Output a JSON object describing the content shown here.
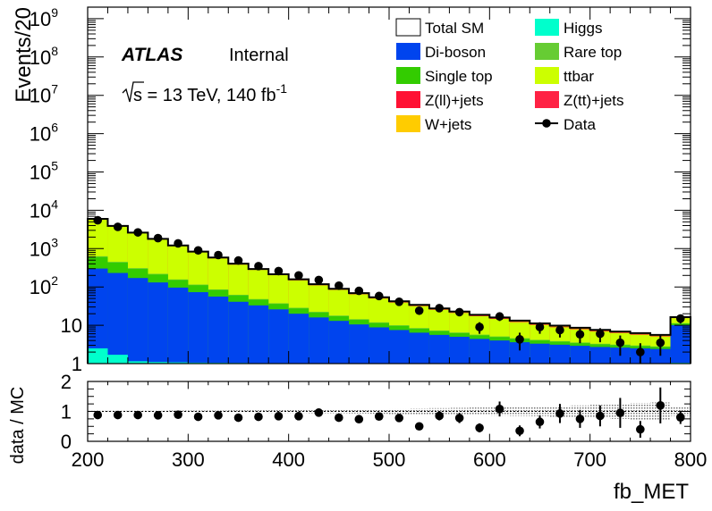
{
  "chart_data": [
    {
      "type": "stacked-histogram",
      "atlas_label": "ATLAS",
      "status_label": "Internal",
      "energy_text": "s = 13 TeV, 140 fb",
      "energy_sup": "-1",
      "ylabel": "Events/20",
      "yscale": "log",
      "ylim": [
        1,
        2000000000
      ],
      "xlim": [
        200,
        800
      ],
      "y_tick_labels": [
        {
          "value": 1000000000,
          "base": "10",
          "exp": "9"
        },
        {
          "value": 100000000,
          "base": "10",
          "exp": "8"
        },
        {
          "value": 10000000,
          "base": "10",
          "exp": "7"
        },
        {
          "value": 1000000,
          "base": "10",
          "exp": "6"
        },
        {
          "value": 100000,
          "base": "10",
          "exp": "5"
        },
        {
          "value": 10000,
          "base": "10",
          "exp": "4"
        },
        {
          "value": 1000,
          "base": "10",
          "exp": "3"
        },
        {
          "value": 100,
          "base": "10",
          "exp": "2"
        },
        {
          "value": 10,
          "base": "10",
          "exp": ""
        },
        {
          "value": 1,
          "base": "1",
          "exp": ""
        }
      ],
      "bin_edges": [
        200,
        220,
        240,
        260,
        280,
        300,
        320,
        340,
        360,
        380,
        400,
        420,
        440,
        460,
        480,
        500,
        520,
        540,
        560,
        580,
        600,
        620,
        640,
        660,
        680,
        700,
        720,
        740,
        760,
        780,
        800
      ],
      "stack": [
        {
          "name": "Higgs",
          "color": "#00ffcc",
          "values": [
            2.5,
            1.7,
            1.15,
            1.1,
            1.08,
            1.06,
            1.05,
            1.04,
            1.03,
            1.03,
            1.02,
            1.02,
            1.02,
            1.02,
            1.01,
            1.01,
            1.01,
            1.01,
            1.01,
            1.01,
            1.01,
            1.01,
            1.01,
            1.01,
            1.01,
            1.01,
            1.01,
            1.01,
            1.01,
            1.05
          ]
        },
        {
          "name": "Di-boson",
          "color": "#0044ee",
          "values": [
            300,
            230,
            170,
            130,
            95,
            72,
            55,
            40,
            32,
            25,
            19,
            15,
            12,
            9.5,
            7.8,
            6.5,
            5.4,
            4.6,
            4,
            3.4,
            3,
            2.6,
            2.3,
            2.1,
            1.9,
            1.7,
            1.6,
            1.5,
            1.4,
            9
          ]
        },
        {
          "name": "Single top",
          "color": "#33cc00",
          "values": [
            300,
            200,
            125,
            80,
            55,
            38,
            27,
            19,
            13.5,
            10,
            7.5,
            5.5,
            4.2,
            3.3,
            2.6,
            2.1,
            1.7,
            1.4,
            1.2,
            1.05,
            0.9,
            0.8,
            0.7,
            0.6,
            0.5,
            0.45,
            0.4,
            0.35,
            0.3,
            1
          ]
        },
        {
          "name": "Rare top",
          "color": "#66cc33",
          "values": [
            30,
            20,
            13,
            9,
            6,
            4.3,
            3.2,
            2.4,
            1.8,
            1.4,
            1.1,
            0.9,
            0.7,
            0.6,
            0.5,
            0.4,
            0.35,
            0.3,
            0.26,
            0.23,
            0.2,
            0.18,
            0.16,
            0.15,
            0.14,
            0.13,
            0.12,
            0.11,
            0.1,
            0.3
          ]
        },
        {
          "name": "ttbar",
          "color": "#ccff00",
          "values": [
            5100,
            3300,
            2200,
            1500,
            1000,
            680,
            470,
            320,
            230,
            165,
            120,
            88,
            66,
            50,
            38,
            29,
            23,
            18,
            14.5,
            11.5,
            9.5,
            7.5,
            6,
            5,
            4.3,
            3.6,
            3.1,
            2.7,
            2.3,
            4
          ]
        },
        {
          "name": "Z(tt)+jets",
          "color": "#ff2244",
          "values": [
            30,
            22,
            15,
            11,
            8,
            6,
            4.5,
            3.4,
            2.6,
            2,
            1.6,
            1.3,
            1.05,
            0.85,
            0.7,
            0.6,
            0.5,
            0.42,
            0.36,
            0.3,
            0.26,
            0.22,
            0.19,
            0.17,
            0.15,
            0.13,
            0.12,
            0.11,
            0.1,
            0.2
          ]
        },
        {
          "name": "Z(ll)+jets",
          "color": "#ff1133",
          "values": [
            12,
            9,
            6.5,
            5,
            3.7,
            2.8,
            2.1,
            1.6,
            1.25,
            1,
            0.8,
            0.65,
            0.52,
            0.42,
            0.35,
            0.29,
            0.24,
            0.2,
            0.17,
            0.15,
            0.13,
            0.11,
            0.1,
            0.09,
            0.08,
            0.07,
            0.06,
            0.06,
            0.05,
            0.1
          ]
        },
        {
          "name": "W+jets",
          "color": "#ffcc00",
          "values": [
            200,
            140,
            95,
            65,
            45,
            32,
            23,
            17,
            12.5,
            9.5,
            7.2,
            5.6,
            4.4,
            3.5,
            2.8,
            2.3,
            1.9,
            1.6,
            1.35,
            1.15,
            1,
            0.85,
            0.75,
            0.65,
            0.55,
            0.5,
            0.45,
            0.4,
            0.35,
            0.6
          ]
        }
      ],
      "total_sm_label": "Total SM",
      "data_label": "Data",
      "data": {
        "x": [
          210,
          230,
          250,
          270,
          290,
          310,
          330,
          350,
          370,
          390,
          410,
          430,
          450,
          470,
          490,
          510,
          530,
          550,
          570,
          590,
          610,
          630,
          650,
          670,
          690,
          710,
          730,
          750,
          770,
          790
        ],
        "y": [
          5500,
          3700,
          2650,
          1880,
          1370,
          900,
          680,
          490,
          350,
          260,
          200,
          152,
          108,
          79,
          58,
          41,
          24,
          28,
          22,
          9,
          17,
          4.3,
          9,
          7.5,
          5.8,
          6,
          3.5,
          2,
          3.5,
          15
        ],
        "err": [
          75,
          61,
          51,
          43,
          37,
          30,
          26,
          22,
          19,
          16,
          14,
          12.3,
          10.4,
          8.9,
          7.6,
          6.4,
          4.9,
          5.3,
          4.7,
          3,
          4.1,
          2.1,
          3,
          2.7,
          2.4,
          2.4,
          1.9,
          1.4,
          1.9,
          3.9
        ]
      },
      "legend": [
        {
          "label": "Total SM",
          "kind": "box-outline",
          "color": "#ffffff"
        },
        {
          "label": "Higgs",
          "kind": "box",
          "color": "#00ffcc"
        },
        {
          "label": "Di-boson",
          "kind": "box",
          "color": "#0044ee"
        },
        {
          "label": "Rare top",
          "kind": "box",
          "color": "#66cc33"
        },
        {
          "label": "Single top",
          "kind": "box",
          "color": "#33cc00"
        },
        {
          "label": "ttbar",
          "kind": "box",
          "color": "#ccff00"
        },
        {
          "label": "Z(ll)+jets",
          "kind": "box",
          "color": "#ff1133"
        },
        {
          "label": "Z(tt)+jets",
          "kind": "box",
          "color": "#ff2244"
        },
        {
          "label": "W+jets",
          "kind": "box",
          "color": "#ffcc00"
        },
        {
          "label": "Data",
          "kind": "marker",
          "color": "#000000"
        }
      ],
      "legend_placement": "top-right"
    },
    {
      "type": "scatter",
      "ylabel": "data / MC",
      "xlabel": "fb_MET",
      "ylim": [
        0,
        2
      ],
      "xlim": [
        200,
        800
      ],
      "y_ticks": [
        0,
        1,
        2
      ],
      "x_ticks": [
        200,
        300,
        400,
        500,
        600,
        700,
        800
      ],
      "reference_line": 1,
      "x": [
        210,
        230,
        250,
        270,
        290,
        310,
        330,
        350,
        370,
        390,
        410,
        430,
        450,
        470,
        490,
        510,
        530,
        550,
        570,
        590,
        610,
        630,
        650,
        670,
        690,
        710,
        730,
        750,
        770,
        790
      ],
      "ratio": [
        0.88,
        0.88,
        0.88,
        0.87,
        0.89,
        0.82,
        0.87,
        0.79,
        0.82,
        0.84,
        0.84,
        0.96,
        0.79,
        0.74,
        0.83,
        0.78,
        0.5,
        0.85,
        0.78,
        0.45,
        1.08,
        0.35,
        0.65,
        0.93,
        0.75,
        0.85,
        0.95,
        0.4,
        1.2,
        0.8
      ],
      "err": [
        0.02,
        0.02,
        0.02,
        0.02,
        0.02,
        0.03,
        0.03,
        0.04,
        0.04,
        0.05,
        0.06,
        0.08,
        0.08,
        0.09,
        0.1,
        0.12,
        0.1,
        0.15,
        0.17,
        0.15,
        0.25,
        0.18,
        0.22,
        0.32,
        0.3,
        0.35,
        0.5,
        0.28,
        0.6,
        0.22
      ],
      "mc_uncertainty": [
        0.02,
        0.02,
        0.02,
        0.02,
        0.03,
        0.03,
        0.03,
        0.04,
        0.04,
        0.05,
        0.05,
        0.06,
        0.06,
        0.07,
        0.08,
        0.09,
        0.1,
        0.11,
        0.12,
        0.13,
        0.14,
        0.15,
        0.16,
        0.18,
        0.2,
        0.22,
        0.25,
        0.28,
        0.3,
        0.15
      ]
    }
  ]
}
